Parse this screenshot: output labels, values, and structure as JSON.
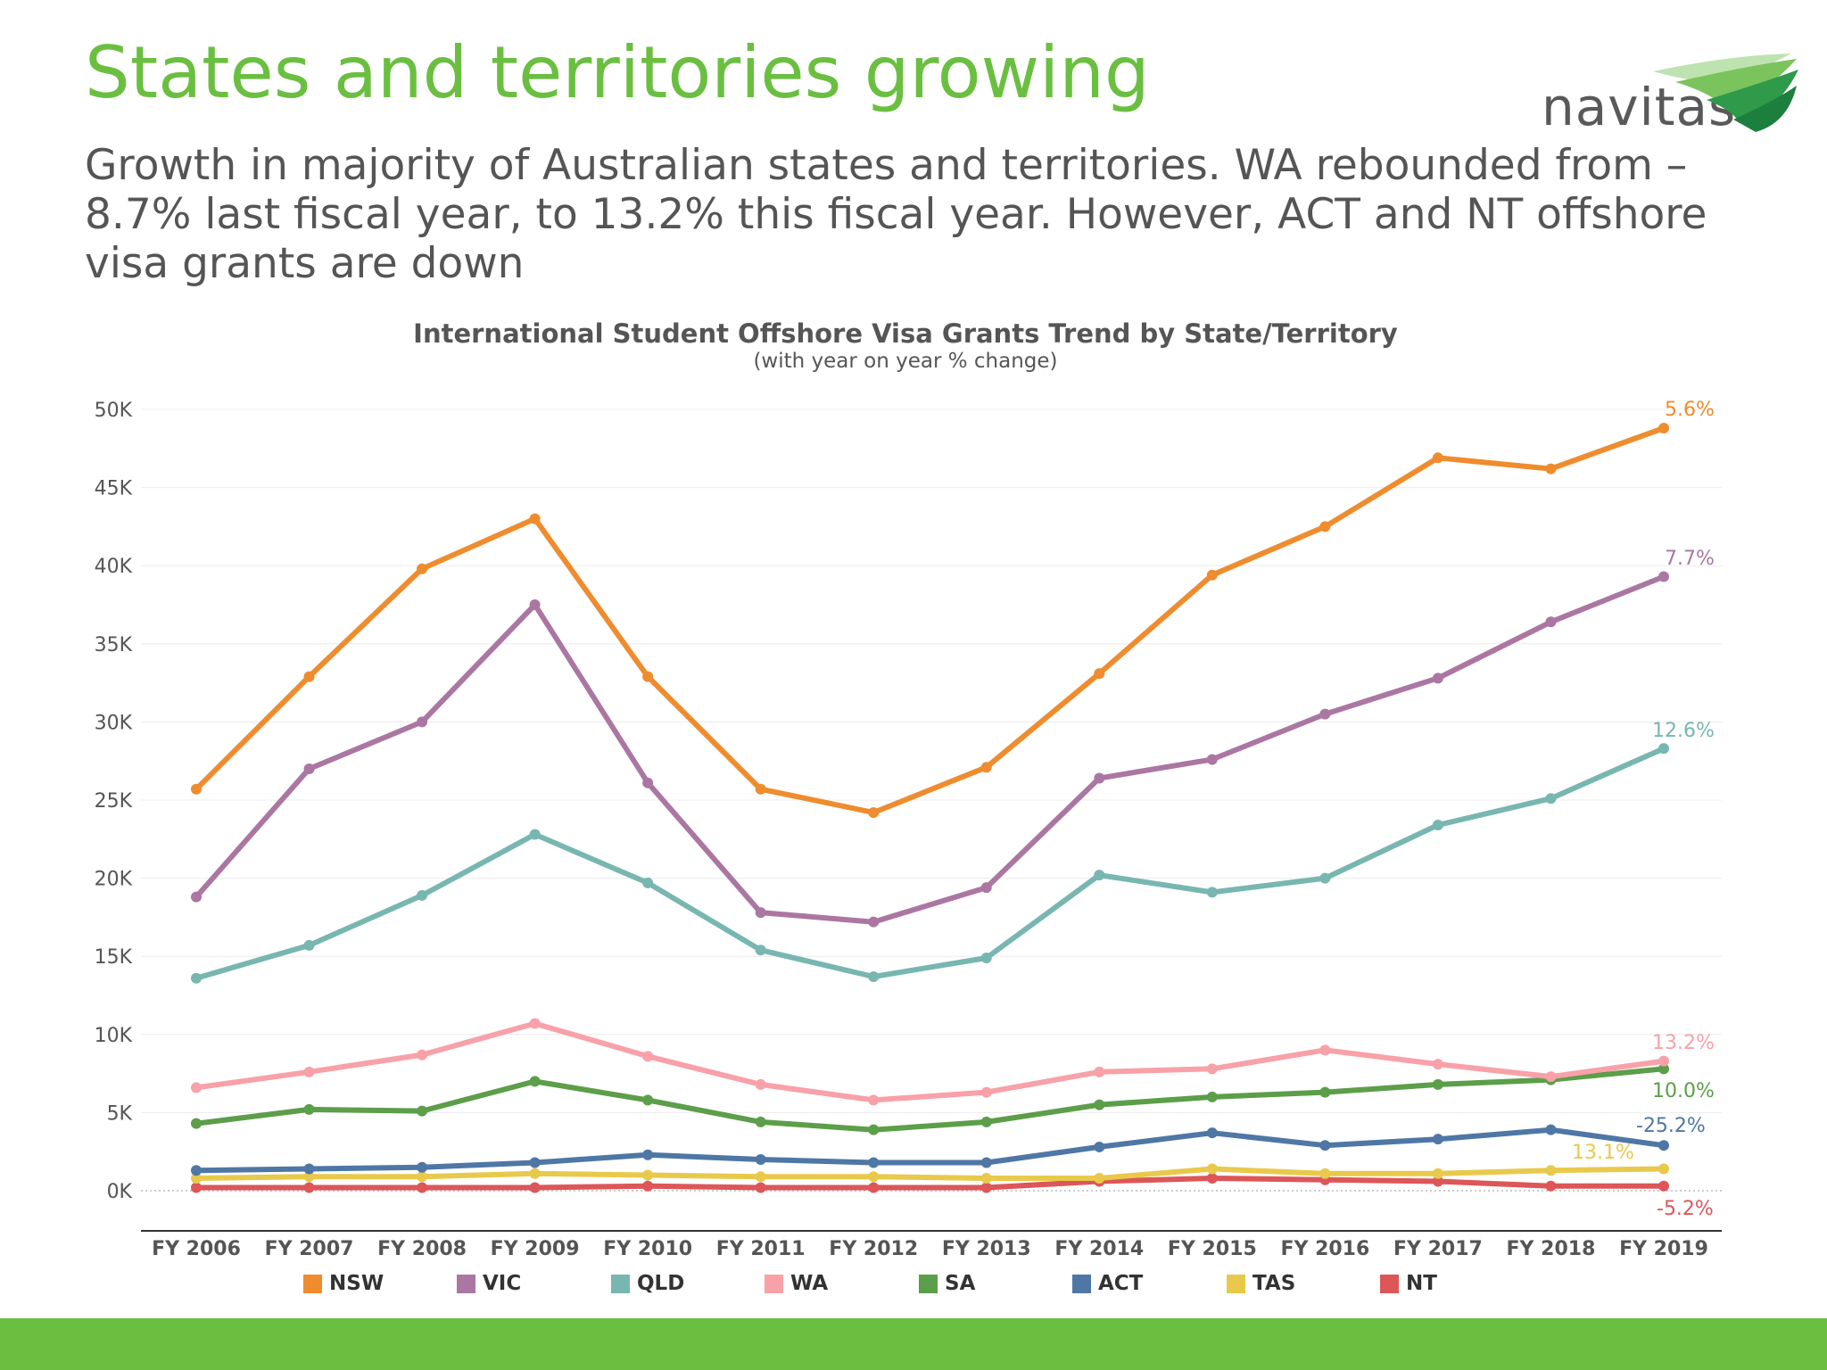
{
  "slide": {
    "title": "States and territories growing",
    "subtitle": "Growth in majority of Australian states and territories. WA rebounded from –8.7% last fiscal year, to 13.2% this fiscal year. However, ACT and NT offshore visa grants are down",
    "logo_text": "navitas",
    "brand_color": "#6abf40",
    "footer_color": "#6abf40"
  },
  "chart_data": {
    "type": "line",
    "title": "International Student Offshore Visa Grants Trend by State/Territory",
    "subtitle": "(with year on year % change)",
    "categories": [
      "FY 2006",
      "FY 2007",
      "FY 2008",
      "FY 2009",
      "FY 2010",
      "FY 2011",
      "FY 2012",
      "FY 2013",
      "FY 2014",
      "FY 2015",
      "FY 2016",
      "FY 2017",
      "FY 2018",
      "FY 2019"
    ],
    "ylim": [
      0,
      50000
    ],
    "yticks": [
      0,
      5000,
      10000,
      15000,
      20000,
      25000,
      30000,
      35000,
      40000,
      45000,
      50000
    ],
    "ytick_labels": [
      "0K",
      "5K",
      "10K",
      "15K",
      "20K",
      "25K",
      "30K",
      "35K",
      "40K",
      "45K",
      "50K"
    ],
    "grid": true,
    "legend_position": "bottom",
    "series": [
      {
        "name": "NSW",
        "color": "#ef8c2e",
        "end_label": "5.6%",
        "values": [
          25700,
          32900,
          39800,
          43000,
          32900,
          25700,
          24200,
          27100,
          33100,
          39400,
          42500,
          46900,
          46200,
          48800
        ]
      },
      {
        "name": "VIC",
        "color": "#ab77a2",
        "end_label": "7.7%",
        "values": [
          18800,
          27000,
          30000,
          37500,
          26100,
          17800,
          17200,
          19400,
          26400,
          27600,
          30500,
          32800,
          36400,
          39300
        ]
      },
      {
        "name": "QLD",
        "color": "#78b6b1",
        "end_label": "12.6%",
        "values": [
          13600,
          15700,
          18900,
          22800,
          19700,
          15400,
          13700,
          14900,
          20200,
          19100,
          20000,
          23400,
          25100,
          28300
        ]
      },
      {
        "name": "WA",
        "color": "#f8a1a9",
        "end_label": "13.2%",
        "values": [
          6600,
          7600,
          8700,
          10700,
          8600,
          6800,
          5800,
          6300,
          7600,
          7800,
          9000,
          8100,
          7300,
          8300
        ]
      },
      {
        "name": "SA",
        "color": "#5c9e49",
        "end_label": "10.0%",
        "values": [
          4300,
          5200,
          5100,
          7000,
          5800,
          4400,
          3900,
          4400,
          5500,
          6000,
          6300,
          6800,
          7100,
          7800
        ]
      },
      {
        "name": "ACT",
        "color": "#4f77a5",
        "end_label": "-25.2%",
        "values": [
          1300,
          1400,
          1500,
          1800,
          2300,
          2000,
          1800,
          1800,
          2800,
          3700,
          2900,
          3300,
          3900,
          2900
        ]
      },
      {
        "name": "TAS",
        "color": "#e9c94b",
        "end_label": "13.1%",
        "values": [
          800,
          900,
          900,
          1100,
          1000,
          900,
          900,
          800,
          800,
          1400,
          1100,
          1100,
          1300,
          1400
        ]
      },
      {
        "name": "NT",
        "color": "#dd5658",
        "end_label": "-5.2%",
        "values": [
          200,
          200,
          200,
          200,
          300,
          200,
          200,
          200,
          600,
          800,
          700,
          600,
          300,
          300
        ]
      }
    ]
  }
}
